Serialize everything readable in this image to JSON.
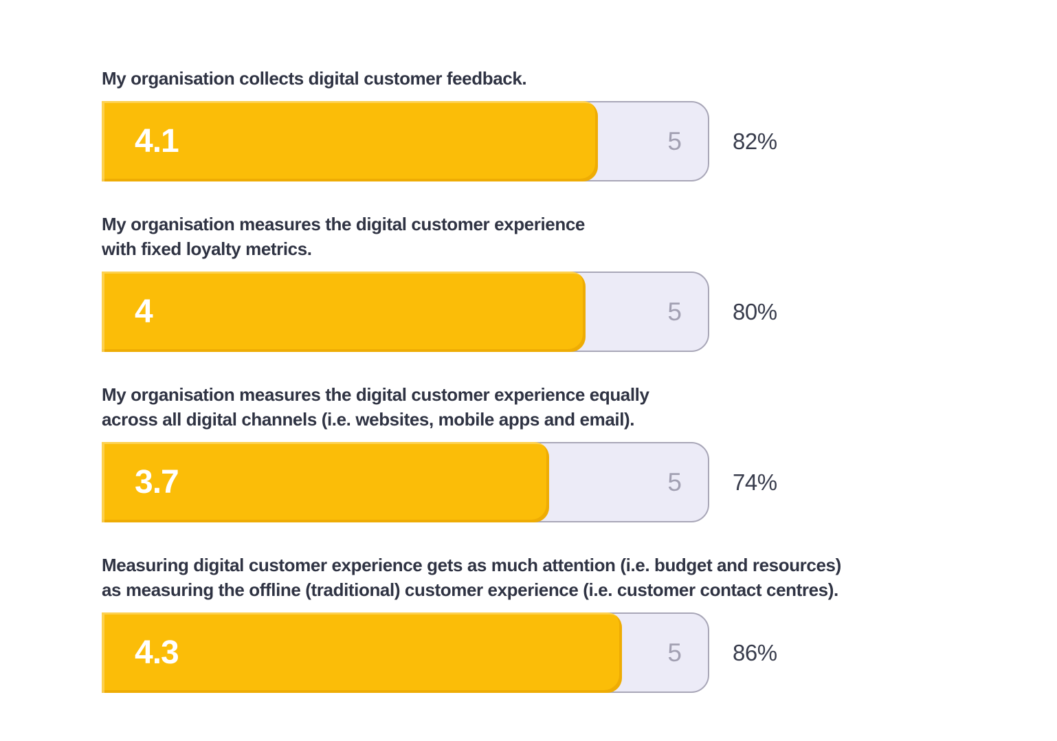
{
  "chart_data": {
    "type": "bar",
    "orientation": "horizontal",
    "title": "",
    "xlabel": "",
    "ylabel": "",
    "scale_max": 5,
    "xlim": [
      0,
      5
    ],
    "grid": false,
    "legend": "none",
    "categories": [
      "My organisation collects digital customer feedback.",
      "My organisation measures the digital customer experience with fixed loyalty metrics.",
      "My organisation measures the digital customer experience equally across all digital channels (i.e. websites, mobile apps and email).",
      "Measuring digital customer experience gets as much attention (i.e. budget and resources) as measuring the offline (traditional) customer experience (i.e. customer contact centres)."
    ],
    "category_lines": [
      [
        "My organisation collects digital customer feedback.",
        ""
      ],
      [
        "My organisation measures the digital customer experience",
        "with fixed loyalty metrics."
      ],
      [
        "My organisation measures the digital customer experience equally",
        "across all digital channels (i.e. websites, mobile apps and email)."
      ],
      [
        "Measuring digital customer experience gets as much attention (i.e. budget and resources)",
        "as measuring the offline (traditional) customer experience (i.e. customer contact centres)."
      ]
    ],
    "values": [
      4.1,
      4,
      3.7,
      4.3
    ],
    "value_labels": [
      "4.1",
      "4",
      "3.7",
      "4.3"
    ],
    "scale_max_labels": [
      "5",
      "5",
      "5",
      "5"
    ],
    "percent_labels": [
      "82%",
      "80%",
      "74%",
      "86%"
    ],
    "colors": {
      "bar_fill": "#fbbd08",
      "bar_fill_light_edge": "#fde28c",
      "bar_fill_dark_edge": "#de9600",
      "track_fill": "#ecebf7",
      "track_border": "#a8a6b7",
      "question_text": "#2f3343",
      "value_text": "#ffffff",
      "max_label_text": "#a2a0b2",
      "percent_text": "#383c4c"
    }
  }
}
